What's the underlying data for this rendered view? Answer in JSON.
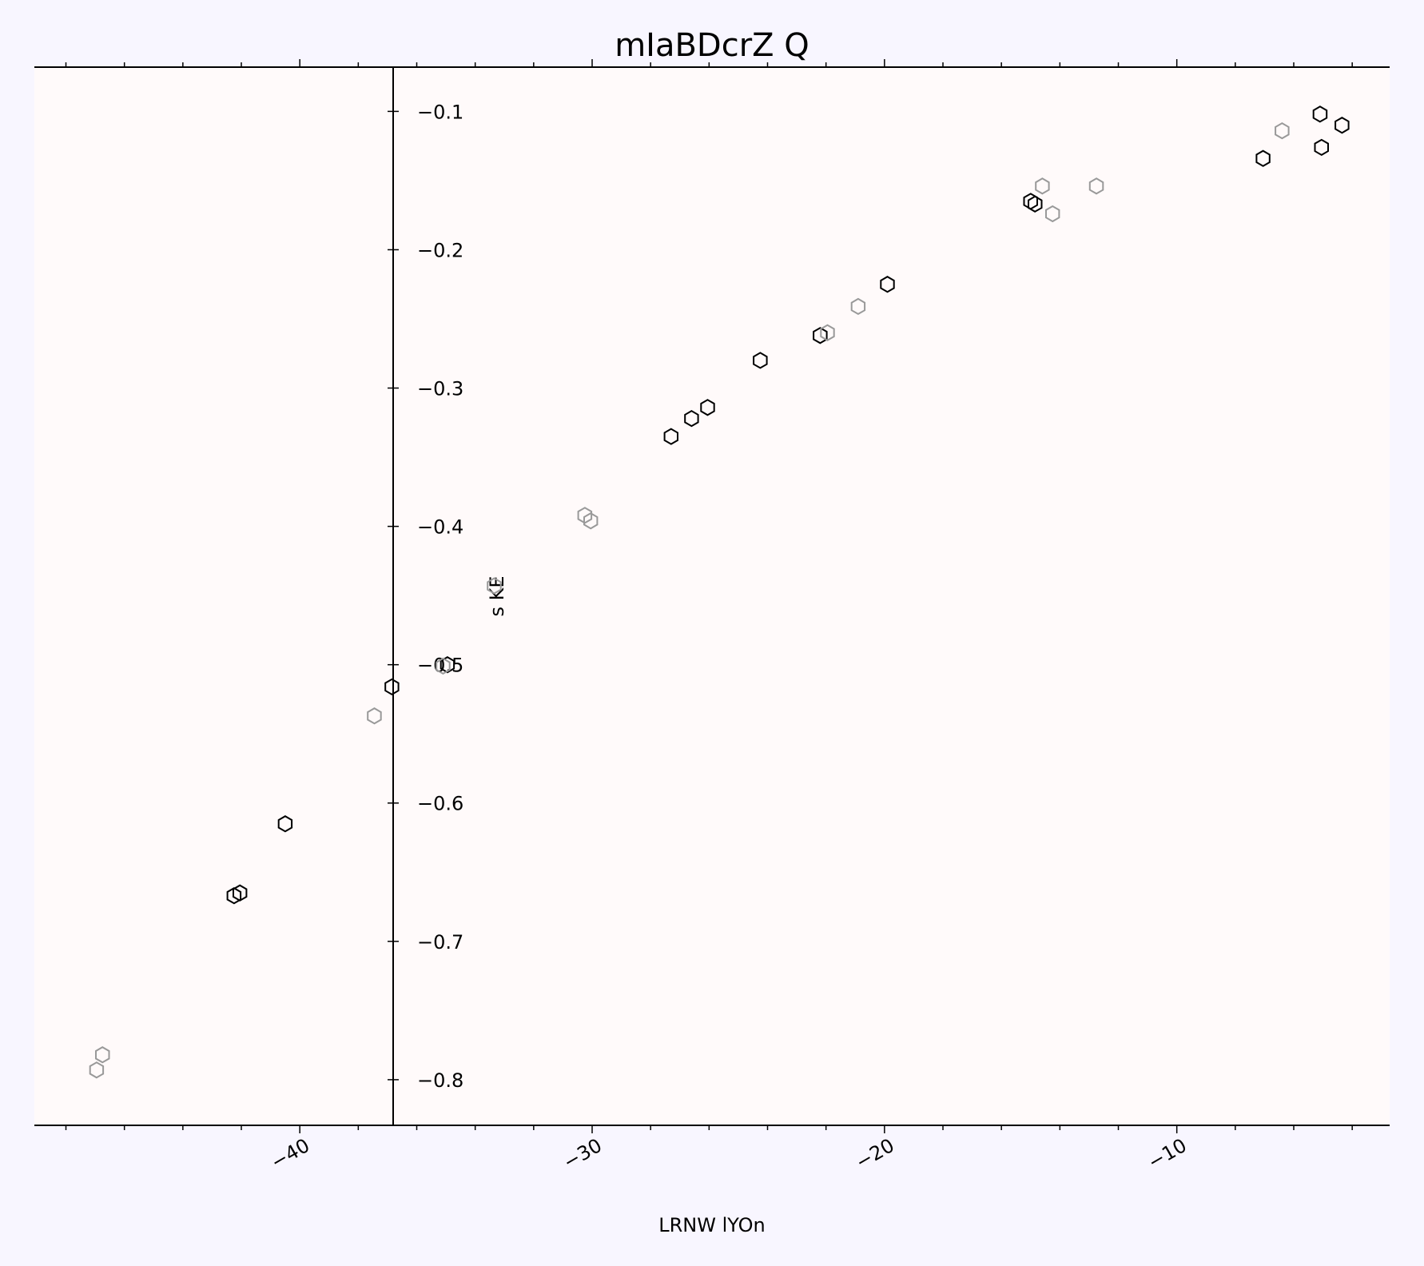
{
  "chart_data": {
    "type": "scatter",
    "title": "mIaBDcrZ Q",
    "xlabel": "LRNW lYOn",
    "ylabel": "s  KE",
    "xlim": [
      -49.08,
      -2.72
    ],
    "ylim": [
      -0.833,
      -0.068
    ],
    "xticks": [
      -40,
      -30,
      -20,
      -10
    ],
    "xtick_labels": [
      "−40",
      "−30",
      "−20",
      "−10"
    ],
    "yticks": [
      -0.1,
      -0.2,
      -0.3,
      -0.4,
      -0.5,
      -0.6,
      -0.7,
      -0.8
    ],
    "ytick_labels": [
      "−0.1",
      "−0.2",
      "−0.3",
      "−0.4",
      "−0.5",
      "−0.6",
      "−0.7",
      "−0.8"
    ],
    "marker": "hexagon-open",
    "colors": {
      "series_dark": "#000000",
      "series_light": "#999999",
      "plot_bg": "#fffafa",
      "page_bg": "#f8f6ff"
    },
    "grid": false,
    "series": [
      {
        "color": "#000000",
        "points": [
          [
            -5.1,
            -0.102
          ],
          [
            -4.35,
            -0.11
          ],
          [
            -5.05,
            -0.126
          ],
          [
            -7.05,
            -0.134
          ],
          [
            -15.0,
            -0.165
          ],
          [
            -14.85,
            -0.167
          ],
          [
            -19.9,
            -0.225
          ],
          [
            -22.2,
            -0.262
          ],
          [
            -24.25,
            -0.28
          ],
          [
            -26.05,
            -0.314
          ],
          [
            -26.6,
            -0.322
          ],
          [
            -27.3,
            -0.335
          ],
          [
            -34.95,
            -0.5
          ],
          [
            -36.85,
            -0.516
          ],
          [
            -40.5,
            -0.615
          ],
          [
            -42.05,
            -0.665
          ],
          [
            -42.25,
            -0.667
          ]
        ]
      },
      {
        "color": "#999999",
        "points": [
          [
            -6.4,
            -0.114
          ],
          [
            -14.6,
            -0.154
          ],
          [
            -12.75,
            -0.154
          ],
          [
            -14.25,
            -0.174
          ],
          [
            -20.9,
            -0.241
          ],
          [
            -21.95,
            -0.26
          ],
          [
            -30.25,
            -0.392
          ],
          [
            -30.05,
            -0.396
          ],
          [
            -33.35,
            -0.443
          ],
          [
            -35.1,
            -0.501
          ],
          [
            -37.45,
            -0.537
          ],
          [
            -46.75,
            -0.782
          ],
          [
            -46.95,
            -0.793
          ]
        ]
      }
    ]
  }
}
